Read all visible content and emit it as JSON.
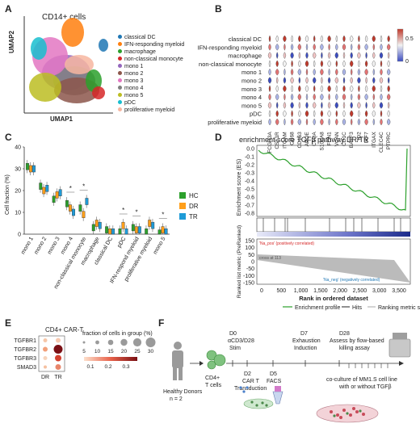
{
  "panel_letters": [
    "A",
    "B",
    "C",
    "D",
    "E",
    "F"
  ],
  "panelA": {
    "title": "CD14+ cells",
    "xlabel": "UMAP1",
    "ylabel": "UMAP2",
    "legend": [
      {
        "label": "classical DC",
        "color": "#1f77b4"
      },
      {
        "label": "IFN-responding myeloid",
        "color": "#ff7f0e"
      },
      {
        "label": "macrophage",
        "color": "#2ca02c"
      },
      {
        "label": "non-classical monocyte",
        "color": "#d62728"
      },
      {
        "label": "mono 1",
        "color": "#9467bd"
      },
      {
        "label": "mono 2",
        "color": "#8c564b"
      },
      {
        "label": "mono 3",
        "color": "#e377c2"
      },
      {
        "label": "mono 4",
        "color": "#7f7f7f"
      },
      {
        "label": "mono 5",
        "color": "#bcbd22"
      },
      {
        "label": "pDC",
        "color": "#17becf"
      },
      {
        "label": "proliferative myeloid",
        "color": "#f7b6a0"
      }
    ]
  },
  "panelB": {
    "rows": [
      "classical DC",
      "IFN-responding myeloid",
      "macrophage",
      "non-classical monocyte",
      "mono 1",
      "mono 2",
      "mono 3",
      "mono 4",
      "mono 5",
      "pDC",
      "proliferative myeloid"
    ],
    "genes": [
      "FCGR3A",
      "CSF1R",
      "ITGAM",
      "CD68",
      "CD163",
      "APOE",
      "C1QA",
      "S100A8",
      "FCN1",
      "VCAN",
      "CD1C",
      "BATF3",
      "ID2",
      "IRF7",
      "ITGAX",
      "CLEC4C",
      "PTPRC"
    ],
    "colorbar_ticks": [
      "0.5",
      "0"
    ],
    "colors": {
      "high": "#c0392b",
      "mid": "#f2f2f2",
      "low": "#3b4cc0"
    }
  },
  "panelC": {
    "ylabel": "Cell fraction (%)",
    "yticks": [
      "0",
      "10",
      "20",
      "30",
      "40"
    ],
    "categories": [
      "mono 1",
      "mono 2",
      "mono 3",
      "mono 4",
      "non-classical monocyte",
      "macrophage",
      "classical DC",
      "pDC",
      "IFN-respond myeloid",
      "proliferative myeloid",
      "mono 5"
    ],
    "legend": [
      {
        "label": "HC",
        "color": "#2ca02c"
      },
      {
        "label": "DR",
        "color": "#ff9f1a"
      },
      {
        "label": "TR",
        "color": "#1f9bd7"
      }
    ],
    "sig": [
      "*",
      "*",
      "*",
      "*",
      "*",
      "*",
      "*"
    ]
  },
  "panelD": {
    "title": "enrichment score TGFβ pathway DR/TR",
    "es_label": "Enrichment score (ES)",
    "es_ticks": [
      "0.0",
      "-0.1",
      "-0.2",
      "-0.3",
      "-0.4",
      "-0.5",
      "-0.6",
      "-0.7",
      "-0.8"
    ],
    "rank_label": "Ranked list metric (PreRanked)",
    "rank_ticks": [
      "150",
      "100",
      "50",
      "0",
      "-50",
      "-100",
      "-150"
    ],
    "x_label": "Rank in ordered dataset",
    "x_ticks": [
      "0",
      "500",
      "1,000",
      "1,500",
      "2,000",
      "2,500",
      "3,000",
      "3,500"
    ],
    "pos_note": "'Na_pos' (positively correlated)",
    "neg_note": "'Na_neg' (negatively correlated)",
    "zero_note": "cross at 113",
    "legend": [
      "Enrichment profile",
      "Hits",
      "Ranking metric scores"
    ]
  },
  "panelE": {
    "title": "CD4+ CAR-T",
    "rows": [
      "TGFBR1",
      "TGFBR2",
      "TGFBR3",
      "SMAD3"
    ],
    "cols": [
      "DR",
      "TR"
    ],
    "size_title": "fraction of cells in group (%)",
    "size_ticks": [
      "5",
      "10",
      "15",
      "20",
      "25",
      "30"
    ],
    "color_ticks": [
      "0.1",
      "0.2",
      "0.3"
    ]
  },
  "panelF": {
    "donors": "Healthy Donors",
    "n": "n = 2",
    "cells": "CD4+ T cells",
    "d0": [
      "D0",
      "αCD3/D28",
      "Stim"
    ],
    "d2": [
      "D2",
      "CAR T",
      "Transduction"
    ],
    "d5": [
      "D5",
      "FACS"
    ],
    "d7": [
      "D7",
      "Exhaustion",
      "Induction"
    ],
    "d28": [
      "D28",
      "Assess by flow-based",
      "killing assay"
    ],
    "coculture": [
      "co-culture of MM1.S cell line",
      "with or without TGFβ"
    ]
  }
}
